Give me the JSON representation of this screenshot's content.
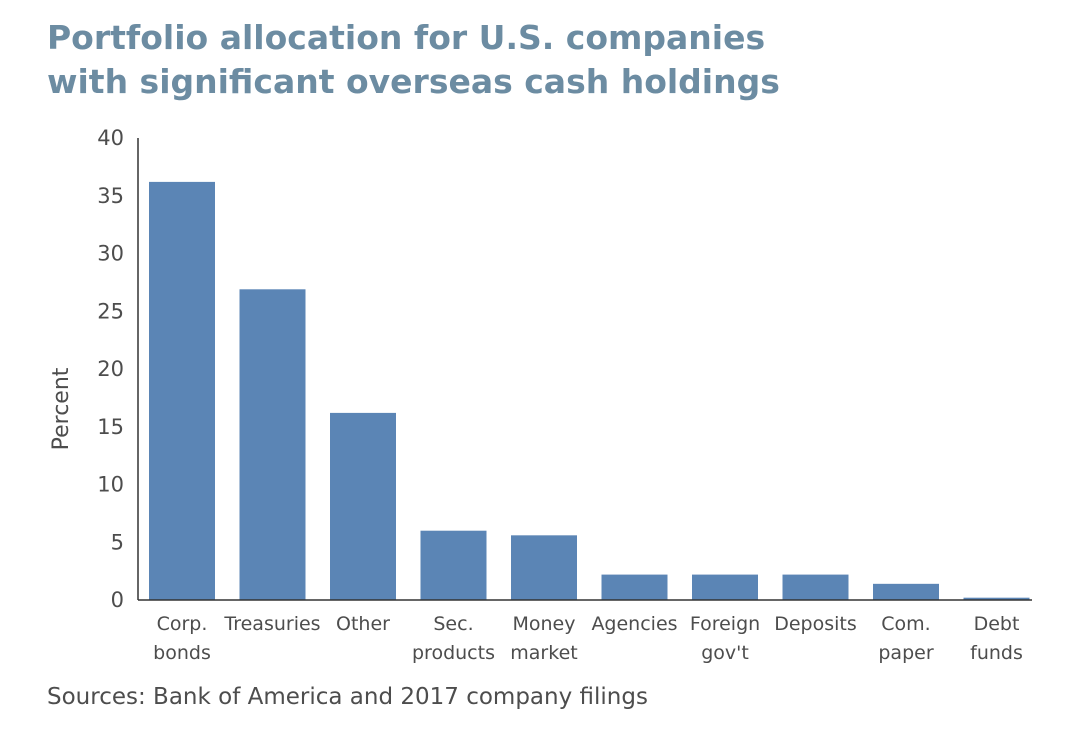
{
  "chart_data": {
    "type": "bar",
    "title": [
      "Portfolio allocation for U.S. companies",
      "with significant overseas cash holdings"
    ],
    "ylabel": "Percent",
    "xlabel": "",
    "ylim": [
      0,
      40
    ],
    "yticks": [
      0,
      5,
      10,
      15,
      20,
      25,
      30,
      35,
      40
    ],
    "categories": [
      [
        "Corp.",
        "bonds"
      ],
      [
        "Treasuries"
      ],
      [
        "Other"
      ],
      [
        "Sec.",
        "products"
      ],
      [
        "Money",
        "market"
      ],
      [
        "Agencies"
      ],
      [
        "Foreign",
        "gov't"
      ],
      [
        "Deposits"
      ],
      [
        "Com.",
        "paper"
      ],
      [
        "Debt",
        "funds"
      ]
    ],
    "values": [
      36.2,
      26.9,
      16.2,
      6.0,
      5.6,
      2.2,
      2.2,
      2.2,
      1.4,
      0.2
    ],
    "bar_color": "#5b85b5",
    "source": "Sources: Bank of America and 2017 company filings"
  }
}
